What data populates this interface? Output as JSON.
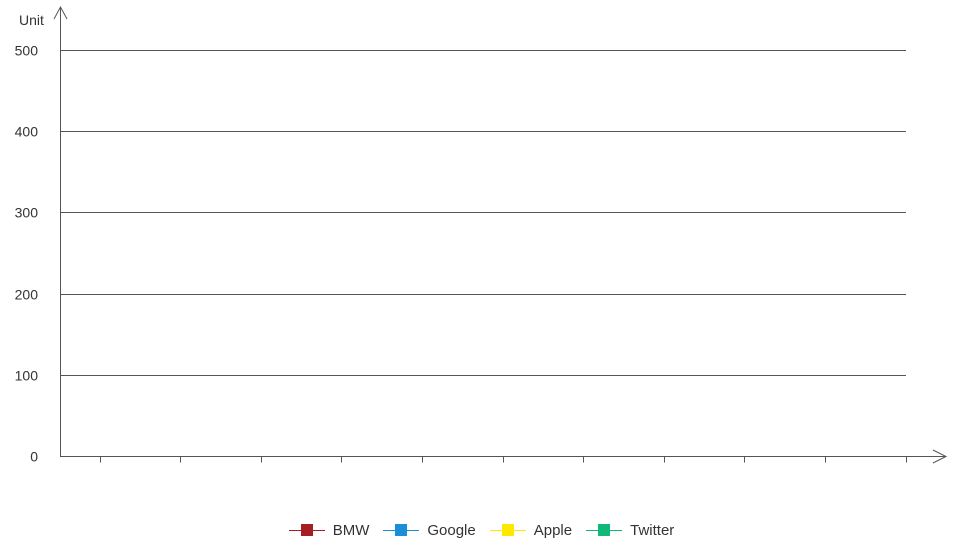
{
  "chart_data": {
    "type": "bar",
    "ylabel": "Unit",
    "ylim": [
      0,
      500
    ],
    "yticks": [
      0,
      100,
      200,
      300,
      400,
      500
    ],
    "category_count": 10,
    "categories": [],
    "grid": true,
    "legend_placement": "bottom-center",
    "series": [
      {
        "name": "BMW",
        "color": "#a41e22",
        "values": []
      },
      {
        "name": "Google",
        "color": "#1a8fd8",
        "values": []
      },
      {
        "name": "Apple",
        "color": "#ffe800",
        "values": []
      },
      {
        "name": "Twitter",
        "color": "#10b978",
        "values": []
      }
    ]
  }
}
